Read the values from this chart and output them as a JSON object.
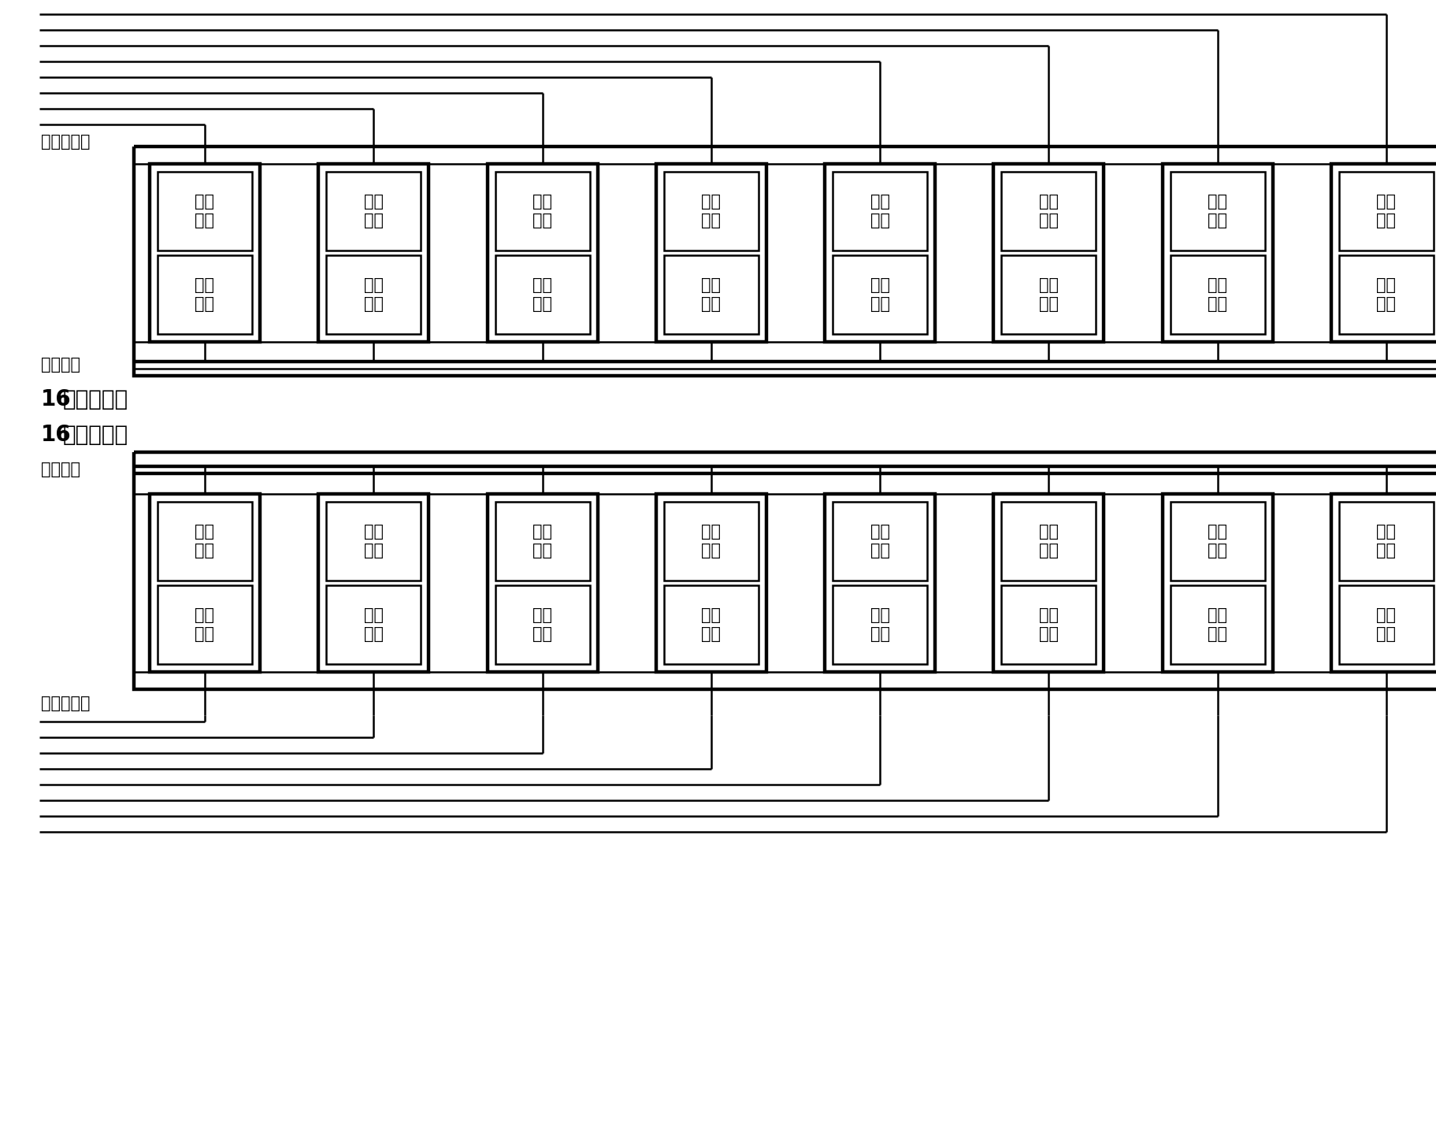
{
  "fig_width": 18.23,
  "fig_height": 14.51,
  "bg_color": "#ffffff",
  "chip_label_line1": "闪存",
  "chip_label_line2": "芯片",
  "label_pian": "片选信号线",
  "label_kong": "控制总线",
  "label_16bit_bold": "16",
  "label_16bit_normal": "位数据总线",
  "num_groups": 8,
  "chip_text_fontsize": 15,
  "label_fontsize": 15,
  "bus_label_fontsize": 20,
  "lw_thin": 1.8,
  "lw_thick": 3.2,
  "lw_bus": 2.5
}
